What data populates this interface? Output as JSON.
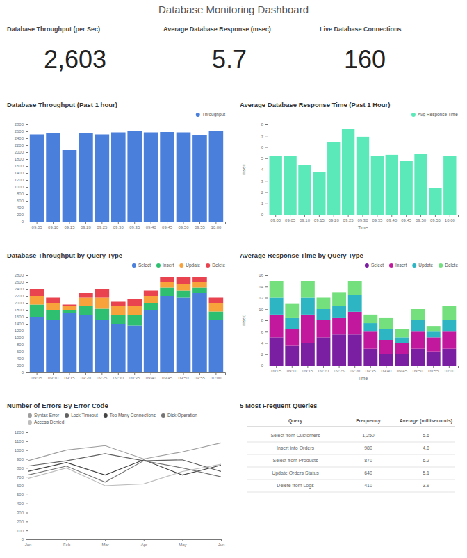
{
  "title": "Database Monitoring Dashboard",
  "kpis": [
    {
      "label": "Database Throughput (per Sec)",
      "value": "2,603"
    },
    {
      "label": "Average Database Response (msec)",
      "value": "5.7"
    },
    {
      "label": "Live Database Connections",
      "value": "160"
    }
  ],
  "chart_data": [
    {
      "type": "bar",
      "title": "Database Throughput (Past 1 hour)",
      "categories": [
        "09:05",
        "09:10",
        "09:15",
        "09:20",
        "09:25",
        "09:30",
        "09:35",
        "09:40",
        "09:45",
        "09:50",
        "09:55",
        "10:00"
      ],
      "series": [
        {
          "name": "Throughput",
          "color": "#4a7fdc",
          "values": [
            2510,
            2560,
            2060,
            2560,
            2510,
            2570,
            2600,
            2570,
            2580,
            2570,
            2500,
            2610
          ]
        }
      ],
      "ylim": [
        0,
        2800
      ],
      "yticks": [
        0,
        200,
        400,
        600,
        800,
        1000,
        1200,
        1400,
        1600,
        1800,
        2000,
        2200,
        2400,
        2600,
        2800
      ],
      "legend": "top-right",
      "grid": false
    },
    {
      "type": "bar",
      "title": "Average Database Response Time (Past 1 Hour)",
      "categories": [
        "09:00",
        "09:05",
        "09:10",
        "09:15",
        "09:20",
        "09:25",
        "09:30",
        "09:35",
        "09:40",
        "09:45",
        "09:50",
        "09:55",
        "10:00"
      ],
      "series": [
        {
          "name": "Avg Response Time",
          "color": "#5ce9b9",
          "values": [
            5.2,
            5.2,
            4.4,
            3.8,
            6.4,
            7.6,
            6.9,
            5.2,
            5.3,
            4.8,
            5.4,
            2.4,
            5.2
          ]
        }
      ],
      "x_label": "Time",
      "y_label": "msec",
      "ylim": [
        0,
        8
      ],
      "yticks": [
        0,
        1,
        2,
        3,
        4,
        5,
        6,
        7,
        8
      ],
      "legend": "top-right",
      "grid": false
    },
    {
      "type": "bar",
      "title": "Database Throughput by Query Type",
      "stacked": true,
      "categories": [
        "09:05",
        "09:10",
        "09:15",
        "09:20",
        "09:25",
        "09:30",
        "09:35",
        "09:40",
        "09:45",
        "09:50",
        "09:55",
        "10:00"
      ],
      "series": [
        {
          "name": "Select",
          "color": "#4a7fdc",
          "values": [
            1600,
            1500,
            1700,
            1650,
            1500,
            1400,
            1350,
            1800,
            2200,
            2150,
            2300,
            1500
          ]
        },
        {
          "name": "Insert",
          "color": "#2fbf71",
          "values": [
            350,
            300,
            100,
            250,
            350,
            250,
            300,
            200,
            250,
            200,
            150,
            250
          ]
        },
        {
          "name": "Update",
          "color": "#f7a23b",
          "values": [
            250,
            200,
            100,
            250,
            300,
            250,
            250,
            200,
            150,
            200,
            150,
            250
          ]
        },
        {
          "name": "Delete",
          "color": "#e8434f",
          "values": [
            200,
            150,
            50,
            150,
            250,
            150,
            200,
            150,
            150,
            200,
            150,
            150
          ]
        }
      ],
      "ylim": [
        0,
        2800
      ],
      "yticks": [
        0,
        200,
        400,
        600,
        800,
        1000,
        1200,
        1400,
        1600,
        1800,
        2000,
        2200,
        2400,
        2600,
        2800
      ],
      "legend": "top-right",
      "grid": false
    },
    {
      "type": "bar",
      "title": "Average Response Time by Query Type",
      "stacked": true,
      "categories": [
        "09:05",
        "09:10",
        "09:15",
        "09:20",
        "09:25",
        "09:30",
        "09:35",
        "09:40",
        "09:45",
        "09:50",
        "09:55",
        "10:00"
      ],
      "series": [
        {
          "name": "Select",
          "color": "#7b1fa2",
          "values": [
            5,
            3.5,
            4,
            5,
            5.5,
            5.5,
            3,
            2,
            2,
            3,
            2.5,
            3
          ]
        },
        {
          "name": "Insert",
          "color": "#c2189e",
          "values": [
            4,
            3,
            5,
            3,
            3,
            4,
            3,
            2.5,
            2,
            3,
            2.5,
            3
          ]
        },
        {
          "name": "Update",
          "color": "#2db5c3",
          "values": [
            3,
            2,
            3,
            2,
            2,
            3,
            1.5,
            2,
            1,
            2,
            1,
            2
          ]
        },
        {
          "name": "Delete",
          "color": "#74df7d",
          "values": [
            3,
            2.5,
            3,
            2,
            2.5,
            2.5,
            1.5,
            2,
            1.5,
            2,
            1,
            2.5
          ]
        }
      ],
      "x_label": "Time",
      "y_label": "msec",
      "ylim": [
        0,
        16
      ],
      "yticks": [
        0,
        2,
        4,
        6,
        8,
        10,
        12,
        14,
        16
      ],
      "legend": "top-right",
      "grid": false
    },
    {
      "type": "line",
      "title": "Number of Errors By Error Code",
      "categories": [
        "Jan",
        "Feb",
        "Mar",
        "Apr",
        "May",
        "Jun"
      ],
      "series": [
        {
          "name": "Syntax Error",
          "color": "#9e9e9e",
          "values": [
            880,
            1000,
            1050,
            900,
            980,
            1080
          ]
        },
        {
          "name": "Lock Timeout",
          "color": "#616161",
          "values": [
            820,
            880,
            960,
            880,
            890,
            760
          ]
        },
        {
          "name": "Too Many Connections",
          "color": "#424242",
          "values": [
            760,
            860,
            720,
            890,
            720,
            830
          ]
        },
        {
          "name": "Disk Operation",
          "color": "#757575",
          "values": [
            720,
            820,
            640,
            880,
            800,
            700
          ]
        },
        {
          "name": "Access Denied",
          "color": "#bdbdbd",
          "values": [
            680,
            800,
            600,
            620,
            760,
            840
          ]
        }
      ],
      "ylim": [
        0,
        1200
      ],
      "yticks": [
        0,
        100,
        200,
        300,
        400,
        500,
        600,
        700,
        800,
        900,
        1000,
        1100,
        1200
      ],
      "legend": "top-left",
      "grid": false
    }
  ],
  "table": {
    "title": "5 Most Frequent Queries",
    "columns": [
      "Query",
      "Frequency",
      "Average (milliseconds)"
    ],
    "rows": [
      [
        "Select from Customers",
        "1,250",
        "5.6"
      ],
      [
        "Insert into Orders",
        "980",
        "4.8"
      ],
      [
        "Select from Products",
        "870",
        "6.2"
      ],
      [
        "Update Orders Status",
        "640",
        "5.1"
      ],
      [
        "Delete from Logs",
        "410",
        "3.9"
      ]
    ]
  }
}
